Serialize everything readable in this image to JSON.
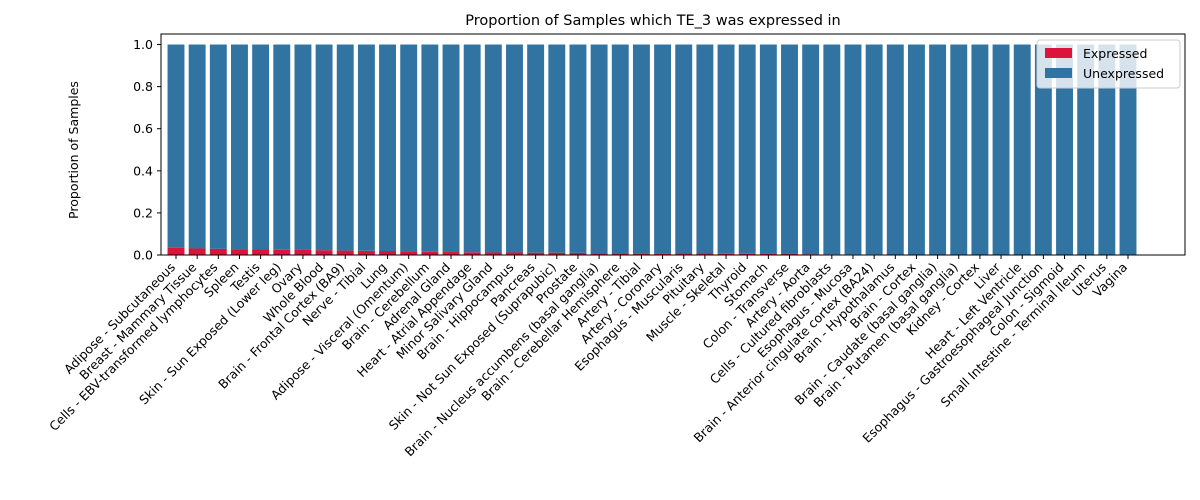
{
  "chart_data": {
    "type": "bar",
    "stacked": true,
    "title": "Proportion of Samples which TE_3 was expressed in",
    "xlabel": "",
    "ylabel": "Proportion of Samples",
    "ylim": [
      0,
      1.05
    ],
    "yticks": [
      "0.0",
      "0.2",
      "0.4",
      "0.6",
      "0.8",
      "1.0"
    ],
    "grid": false,
    "legend": "top-right",
    "categories": [
      "Adipose - Subcutaneous",
      "Breast - Mammary Tissue",
      "Cells - EBV-transformed lymphocytes",
      "Spleen",
      "Testis",
      "Skin - Sun Exposed (Lower leg)",
      "Ovary",
      "Whole Blood",
      "Brain - Frontal Cortex (BA9)",
      "Nerve - Tibial",
      "Lung",
      "Adipose - Visceral (Omentum)",
      "Brain - Cerebellum",
      "Adrenal Gland",
      "Heart - Atrial Appendage",
      "Minor Salivary Gland",
      "Brain - Hippocampus",
      "Pancreas",
      "Skin - Not Sun Exposed (Suprapubic)",
      "Prostate",
      "Brain - Nucleus accumbens (basal ganglia)",
      "Brain - Cerebellar Hemisphere",
      "Artery - Tibial",
      "Artery - Coronary",
      "Esophagus - Muscularis",
      "Pituitary",
      "Muscle - Skeletal",
      "Thyroid",
      "Stomach",
      "Colon - Transverse",
      "Artery - Aorta",
      "Cells - Cultured fibroblasts",
      "Esophagus - Mucosa",
      "Brain - Anterior cingulate cortex (BA24)",
      "Brain - Hypothalamus",
      "Brain - Cortex",
      "Brain - Caudate (basal ganglia)",
      "Brain - Putamen (basal ganglia)",
      "Kidney - Cortex",
      "Liver",
      "Heart - Left Ventricle",
      "Esophagus - Gastroesophageal Junction",
      "Colon - Sigmoid",
      "Small Intestine - Terminal Ileum",
      "Uterus",
      "Vagina"
    ],
    "series": [
      {
        "name": "Expressed",
        "color": "#dc143c",
        "values": [
          0.035,
          0.031,
          0.029,
          0.028,
          0.026,
          0.025,
          0.024,
          0.023,
          0.021,
          0.02,
          0.019,
          0.017,
          0.015,
          0.014,
          0.013,
          0.012,
          0.012,
          0.011,
          0.011,
          0.01,
          0.009,
          0.009,
          0.008,
          0.008,
          0.007,
          0.007,
          0.006,
          0.006,
          0.005,
          0.005,
          0.004,
          0.003,
          0.003,
          0.003,
          0.002,
          0.002,
          0.002,
          0.002,
          0.001,
          0.001,
          0.001,
          0.001,
          0.0,
          0.0,
          0.0,
          0.0
        ]
      },
      {
        "name": "Unexpressed",
        "color": "#3274a1",
        "values": [
          0.965,
          0.969,
          0.971,
          0.972,
          0.974,
          0.975,
          0.976,
          0.977,
          0.979,
          0.98,
          0.981,
          0.983,
          0.985,
          0.986,
          0.987,
          0.988,
          0.988,
          0.989,
          0.989,
          0.99,
          0.991,
          0.991,
          0.992,
          0.992,
          0.993,
          0.993,
          0.994,
          0.994,
          0.995,
          0.995,
          0.996,
          0.997,
          0.997,
          0.997,
          0.998,
          0.998,
          0.998,
          0.998,
          0.999,
          0.999,
          0.999,
          0.999,
          1.0,
          1.0,
          1.0,
          1.0
        ]
      }
    ]
  }
}
